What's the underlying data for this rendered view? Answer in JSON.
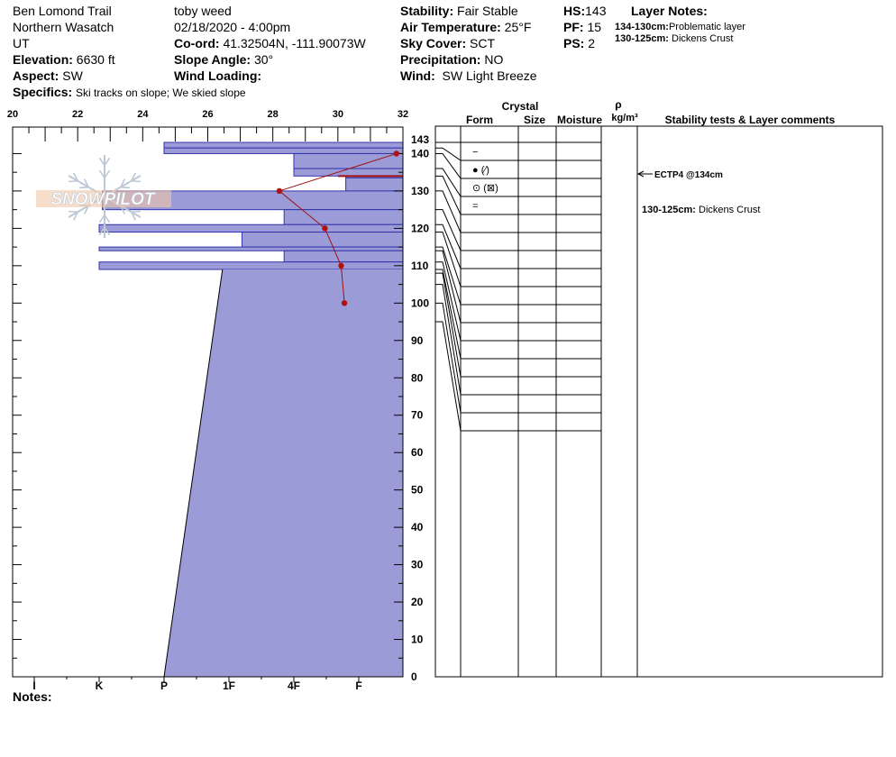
{
  "header": {
    "location": "Ben Lomond Trail",
    "range": "Northern Wasatch",
    "state": "UT",
    "elevation_label": "Elevation:",
    "elevation_value": "6630 ft",
    "aspect_label": "Aspect:",
    "aspect_value": "SW",
    "specifics_label": "Specifics:",
    "specifics_value": "Ski tracks on slope; We skied slope",
    "observer": "toby weed",
    "datetime": "02/18/2020 - 4:00pm",
    "coord_label": "Co-ord:",
    "coord_value": "41.32504N, -111.90073W",
    "slope_label": "Slope Angle:",
    "slope_value": "30°",
    "wind_loading_label": "Wind Loading:",
    "wind_loading_value": "",
    "stability_label": "Stability:",
    "stability_value": "Fair Stable",
    "air_temp_label": "Air Temperature:",
    "air_temp_value": "25°F",
    "sky_label": "Sky Cover:",
    "sky_value": "SCT",
    "precip_label": "Precipitation:",
    "precip_value": "NO",
    "wind_label": "Wind:",
    "wind_value": "SW Light Breeze",
    "hs_label": "HS:",
    "hs_value": "143",
    "pf_label": "PF:",
    "pf_value": "15",
    "ps_label": "PS:",
    "ps_value": "2",
    "layer_notes_title": "Layer Notes:",
    "layer_notes": [
      {
        "range": "134-130cm:",
        "text": "Problematic layer"
      },
      {
        "range": "130-125cm:",
        "text": "Dickens Crust"
      }
    ]
  },
  "logo_text": "SNOWPILOT",
  "notes_label": "Notes:",
  "table": {
    "crystal_label": "Crystal",
    "form_label": "Form",
    "size_label": "Size",
    "moisture_label": "Moisture",
    "rho_label": "ρ",
    "density_unit": "kg/m³",
    "stability_label": "Stability tests & Layer comments"
  },
  "chart_data": {
    "type": "snow_profile",
    "temp_axis": {
      "min": 20,
      "max": 32,
      "ticks": [
        "20",
        "22",
        "24",
        "26",
        "28",
        "30",
        "32"
      ]
    },
    "height_axis": {
      "min": 0,
      "max": 143,
      "ticks": [
        "0",
        "10",
        "20",
        "30",
        "40",
        "50",
        "60",
        "70",
        "80",
        "90",
        "100",
        "110",
        "120",
        "130",
        "140",
        "143"
      ]
    },
    "hardness_labels": [
      "I",
      "K",
      "P",
      "1F",
      "4F",
      "F"
    ],
    "hardness_scale": {
      "I": 0,
      "K": 2,
      "P": 4,
      "1F": 6,
      "4F": 8,
      "F": 10
    },
    "temperature_profile": [
      {
        "height": 140,
        "temp": 31.8
      },
      {
        "height": 130,
        "temp": 28.2
      },
      {
        "height": 120,
        "temp": 29.6
      },
      {
        "height": 110,
        "temp": 30.1
      },
      {
        "height": 100,
        "temp": 30.2
      }
    ],
    "layers": [
      {
        "top": 143,
        "bottom": 141.5,
        "hardness": 4.0
      },
      {
        "top": 141.5,
        "bottom": 140,
        "hardness": 4.0
      },
      {
        "top": 140,
        "bottom": 136,
        "hardness": 8.0
      },
      {
        "top": 136,
        "bottom": 134,
        "hardness": 8.0
      },
      {
        "top": 134,
        "bottom": 133.5,
        "hardness": 9.6
      },
      {
        "top": 133.5,
        "bottom": 130,
        "hardness": 9.6
      },
      {
        "top": 130,
        "bottom": 125,
        "hardness": 2.1
      },
      {
        "top": 125,
        "bottom": 121,
        "hardness": 7.7
      },
      {
        "top": 121,
        "bottom": 119,
        "hardness": 2.0
      },
      {
        "top": 119,
        "bottom": 115,
        "hardness": 6.4
      },
      {
        "top": 115,
        "bottom": 114,
        "hardness": 2.0
      },
      {
        "top": 114,
        "bottom": 111,
        "hardness": 7.7
      },
      {
        "top": 111,
        "bottom": 109,
        "hardness": 2.0
      },
      {
        "top": 109,
        "bottom": 0,
        "hardness_top": 5.8,
        "hardness_bottom": 4.0
      }
    ],
    "grain_forms": [
      {
        "height": 141,
        "symbol": "−"
      },
      {
        "height": 136,
        "symbol": "● (⁄)"
      },
      {
        "height": 131,
        "symbol": "⊙ (⊠)"
      },
      {
        "height": 126,
        "symbol": "="
      }
    ],
    "layer_boundaries_cm": [
      143,
      141.5,
      140,
      136,
      134,
      130,
      125,
      121,
      119,
      115,
      114,
      111,
      109,
      108,
      105,
      100,
      95
    ],
    "stability_tests": [
      {
        "height": 134,
        "text": "ECTP4 @134cm"
      }
    ],
    "layer_comments": [
      {
        "height": 125,
        "text": "130-125cm: Dickens Crust"
      }
    ]
  }
}
